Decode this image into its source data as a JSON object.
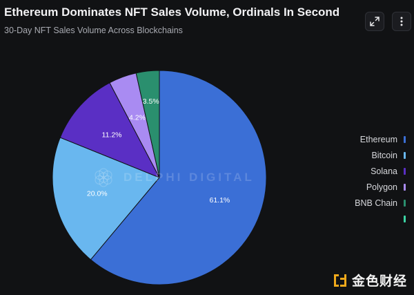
{
  "header": {
    "title": "Ethereum Dominates NFT Sales Volume, Ordinals In Second",
    "subtitle": "30-Day NFT Sales Volume Across Blockchains"
  },
  "toolbar": {
    "expand_icon": "expand-icon",
    "more_icon": "more-vertical-icon"
  },
  "watermark": {
    "text": "DELPHI DIGITAL",
    "icon": "delphi-flower-logo"
  },
  "brand": {
    "text": "金色财经",
    "icon": "golden-finance-logo",
    "color": "#f0a91b"
  },
  "chart_data": {
    "type": "pie",
    "title": "Ethereum Dominates NFT Sales Volume, Ordinals In Second",
    "subtitle": "30-Day NFT Sales Volume Across Blockchains",
    "legend_position": "right",
    "slices": [
      {
        "name": "Ethereum",
        "value": 61.1,
        "label": "61.1%",
        "color": "#3b6fd6"
      },
      {
        "name": "Bitcoin",
        "value": 20.0,
        "label": "20.0%",
        "color": "#69b7ef"
      },
      {
        "name": "Solana",
        "value": 11.2,
        "label": "11.2%",
        "color": "#5a2fc4"
      },
      {
        "name": "Polygon",
        "value": 4.2,
        "label": "4.2%",
        "color": "#a98bf2"
      },
      {
        "name": "BNB Chain",
        "value": 3.5,
        "label": "3.5%",
        "color": "#2a8f6e"
      }
    ],
    "legend_extra_swatch": "#3cd4a4"
  }
}
